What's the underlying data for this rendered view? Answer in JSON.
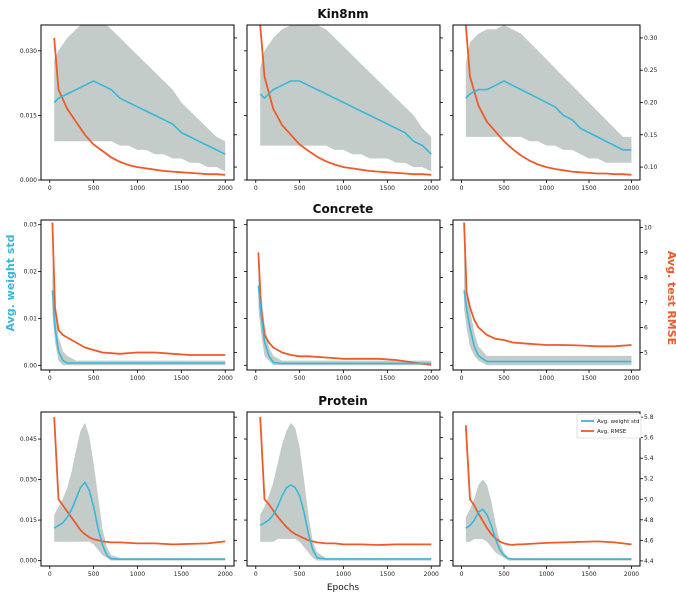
{
  "figure": {
    "row_titles": [
      "Kin8nm",
      "Concrete",
      "Protein"
    ],
    "xlabel": "Epochs",
    "ylabel_left": "Avg. weight std",
    "ylabel_right": "Avg. test RMSE",
    "legend": [
      "Avg. weight std",
      "Avg. RMSE"
    ],
    "colors": {
      "std": "#3ab7d8",
      "rmse": "#ee5a2a",
      "band": "#c4ccca",
      "axis": "#000000"
    }
  },
  "chart_data": [
    {
      "type": "line",
      "dataset": "Kin8nm",
      "xticks": [
        0,
        500,
        1000,
        1500,
        2000
      ],
      "ylim_left": [
        0,
        0.036
      ],
      "yticks_left": [
        "0.000",
        "0.015",
        "0.030"
      ],
      "ylim_right": [
        0.08,
        0.32
      ],
      "yticks_right": [
        "0.10",
        "0.15",
        "0.20",
        "0.25",
        "0.30"
      ],
      "x": [
        50,
        100,
        200,
        300,
        400,
        500,
        600,
        700,
        800,
        900,
        1000,
        1100,
        1200,
        1300,
        1400,
        1500,
        1600,
        1700,
        1800,
        1900,
        2000
      ],
      "panels": [
        {
          "std": [
            0.018,
            0.019,
            0.02,
            0.021,
            0.022,
            0.023,
            0.022,
            0.021,
            0.019,
            0.018,
            0.017,
            0.016,
            0.015,
            0.014,
            0.013,
            0.011,
            0.01,
            0.009,
            0.008,
            0.007,
            0.006
          ],
          "band_lo": [
            0.009,
            0.009,
            0.009,
            0.009,
            0.009,
            0.009,
            0.009,
            0.009,
            0.008,
            0.008,
            0.007,
            0.007,
            0.006,
            0.006,
            0.005,
            0.005,
            0.004,
            0.004,
            0.003,
            0.003,
            0.002
          ],
          "band_hi": [
            0.028,
            0.03,
            0.033,
            0.035,
            0.037,
            0.038,
            0.037,
            0.035,
            0.033,
            0.031,
            0.029,
            0.027,
            0.025,
            0.023,
            0.021,
            0.018,
            0.016,
            0.014,
            0.012,
            0.01,
            0.009
          ],
          "rmse": [
            0.3,
            0.22,
            0.19,
            0.17,
            0.15,
            0.135,
            0.125,
            0.115,
            0.108,
            0.103,
            0.1,
            0.098,
            0.096,
            0.094,
            0.093,
            0.092,
            0.091,
            0.09,
            0.089,
            0.089,
            0.088
          ]
        },
        {
          "std": [
            0.02,
            0.019,
            0.021,
            0.022,
            0.023,
            0.023,
            0.022,
            0.021,
            0.02,
            0.019,
            0.018,
            0.017,
            0.016,
            0.015,
            0.014,
            0.013,
            0.012,
            0.011,
            0.009,
            0.008,
            0.006
          ],
          "band_lo": [
            0.008,
            0.008,
            0.008,
            0.008,
            0.008,
            0.008,
            0.008,
            0.008,
            0.008,
            0.007,
            0.007,
            0.006,
            0.006,
            0.005,
            0.005,
            0.005,
            0.004,
            0.004,
            0.003,
            0.003,
            0.002
          ],
          "band_hi": [
            0.026,
            0.03,
            0.033,
            0.035,
            0.036,
            0.037,
            0.037,
            0.036,
            0.035,
            0.033,
            0.031,
            0.029,
            0.027,
            0.025,
            0.023,
            0.021,
            0.019,
            0.017,
            0.015,
            0.012,
            0.01
          ],
          "rmse": [
            0.32,
            0.24,
            0.19,
            0.165,
            0.15,
            0.135,
            0.125,
            0.116,
            0.109,
            0.104,
            0.1,
            0.098,
            0.096,
            0.094,
            0.093,
            0.092,
            0.091,
            0.09,
            0.089,
            0.089,
            0.088
          ]
        },
        {
          "std": [
            0.019,
            0.02,
            0.021,
            0.021,
            0.022,
            0.023,
            0.022,
            0.021,
            0.02,
            0.019,
            0.018,
            0.017,
            0.015,
            0.014,
            0.012,
            0.011,
            0.01,
            0.009,
            0.008,
            0.007,
            0.007
          ],
          "band_lo": [
            0.01,
            0.01,
            0.01,
            0.01,
            0.01,
            0.01,
            0.01,
            0.01,
            0.009,
            0.009,
            0.008,
            0.008,
            0.007,
            0.007,
            0.006,
            0.005,
            0.005,
            0.004,
            0.004,
            0.004,
            0.004
          ],
          "band_hi": [
            0.027,
            0.032,
            0.034,
            0.035,
            0.035,
            0.036,
            0.035,
            0.034,
            0.032,
            0.03,
            0.028,
            0.026,
            0.024,
            0.022,
            0.02,
            0.018,
            0.016,
            0.014,
            0.012,
            0.01,
            0.01
          ],
          "rmse": [
            0.32,
            0.24,
            0.195,
            0.17,
            0.155,
            0.14,
            0.128,
            0.118,
            0.11,
            0.104,
            0.1,
            0.097,
            0.095,
            0.093,
            0.092,
            0.091,
            0.09,
            0.09,
            0.089,
            0.089,
            0.088
          ]
        }
      ]
    },
    {
      "type": "line",
      "dataset": "Concrete",
      "xticks": [
        0,
        500,
        1000,
        1500,
        2000
      ],
      "ylim_left": [
        -0.001,
        0.031
      ],
      "yticks_left": [
        "0.00",
        "0.01",
        "0.02",
        "0.03"
      ],
      "ylim_right": [
        4.3,
        10.3
      ],
      "yticks_right": [
        "5",
        "6",
        "7",
        "8",
        "9",
        "10"
      ],
      "x": [
        30,
        60,
        100,
        150,
        200,
        300,
        400,
        500,
        600,
        800,
        1000,
        1200,
        1400,
        1600,
        1800,
        2000
      ],
      "panels": [
        {
          "std": [
            0.016,
            0.008,
            0.003,
            0.001,
            0.0005,
            0.0005,
            0.0005,
            0.0005,
            0.0005,
            0.0005,
            0.0005,
            0.0005,
            0.0005,
            0.0005,
            0.0005,
            0.0005
          ],
          "band_lo": [
            0.011,
            0.005,
            0.001,
            0.0,
            0.0,
            0.0,
            0.0,
            0.0,
            0.0,
            0.0,
            0.0,
            0.0,
            0.0,
            0.0,
            0.0,
            0.0
          ],
          "band_hi": [
            0.022,
            0.013,
            0.006,
            0.003,
            0.002,
            0.001,
            0.001,
            0.001,
            0.001,
            0.001,
            0.001,
            0.001,
            0.001,
            0.001,
            0.001,
            0.001
          ],
          "rmse": [
            10.2,
            6.8,
            5.9,
            5.7,
            5.6,
            5.4,
            5.2,
            5.1,
            5.0,
            4.95,
            5.0,
            5.0,
            4.95,
            4.9,
            4.9,
            4.9
          ]
        },
        {
          "std": [
            0.017,
            0.011,
            0.005,
            0.002,
            0.0006,
            0.0004,
            0.0004,
            0.0004,
            0.0004,
            0.0004,
            0.0004,
            0.0004,
            0.0004,
            0.0004,
            0.0004,
            0.0004
          ],
          "band_lo": [
            0.012,
            0.007,
            0.002,
            0.001,
            0.0,
            0.0,
            0.0,
            0.0,
            0.0,
            0.0,
            0.0,
            0.0,
            0.0,
            0.0,
            0.0,
            0.0
          ],
          "band_hi": [
            0.025,
            0.016,
            0.009,
            0.004,
            0.002,
            0.001,
            0.001,
            0.001,
            0.001,
            0.001,
            0.001,
            0.001,
            0.001,
            0.001,
            0.001,
            0.001
          ],
          "rmse": [
            9.0,
            6.8,
            5.7,
            5.4,
            5.2,
            5.0,
            4.9,
            4.85,
            4.85,
            4.8,
            4.75,
            4.75,
            4.75,
            4.7,
            4.6,
            4.5
          ]
        },
        {
          "std": [
            0.016,
            0.012,
            0.008,
            0.004,
            0.002,
            0.0008,
            0.0008,
            0.0008,
            0.0008,
            0.0008,
            0.0008,
            0.0008,
            0.0008,
            0.0008,
            0.0008,
            0.0008
          ],
          "band_lo": [
            0.012,
            0.008,
            0.004,
            0.002,
            0.001,
            0.0,
            0.0,
            0.0,
            0.0,
            0.0,
            0.0,
            0.0,
            0.0,
            0.0,
            0.0,
            0.0
          ],
          "band_hi": [
            0.024,
            0.017,
            0.012,
            0.007,
            0.004,
            0.002,
            0.002,
            0.002,
            0.002,
            0.002,
            0.002,
            0.002,
            0.002,
            0.002,
            0.002,
            0.002
          ],
          "rmse": [
            10.2,
            7.4,
            6.8,
            6.3,
            6.0,
            5.7,
            5.55,
            5.5,
            5.4,
            5.35,
            5.3,
            5.3,
            5.28,
            5.25,
            5.25,
            5.3
          ]
        }
      ]
    },
    {
      "type": "line",
      "dataset": "Protein",
      "xticks": [
        0,
        500,
        1000,
        1500,
        2000
      ],
      "ylim_left": [
        -0.002,
        0.055
      ],
      "yticks_left": [
        "0.000",
        "0.015",
        "0.030",
        "0.045"
      ],
      "ylim_right": [
        4.35,
        5.85
      ],
      "yticks_right": [
        "4.4",
        "4.6",
        "4.8",
        "5.0",
        "5.2",
        "5.4",
        "5.6",
        "5.8"
      ],
      "x": [
        50,
        100,
        150,
        200,
        250,
        300,
        350,
        400,
        450,
        500,
        550,
        600,
        650,
        700,
        800,
        900,
        1000,
        1200,
        1400,
        1600,
        1800,
        2000
      ],
      "panels": [
        {
          "std": [
            0.012,
            0.013,
            0.014,
            0.016,
            0.019,
            0.023,
            0.027,
            0.029,
            0.026,
            0.02,
            0.012,
            0.006,
            0.002,
            0.0007,
            0.0005,
            0.0005,
            0.0005,
            0.0005,
            0.0005,
            0.0005,
            0.0005,
            0.0005
          ],
          "band_lo": [
            0.007,
            0.007,
            0.007,
            0.007,
            0.007,
            0.007,
            0.007,
            0.007,
            0.007,
            0.006,
            0.004,
            0.002,
            0.001,
            0.0,
            0.0,
            0.0,
            0.0,
            0.0,
            0.0,
            0.0,
            0.0,
            0.0
          ],
          "band_hi": [
            0.017,
            0.02,
            0.023,
            0.027,
            0.033,
            0.041,
            0.048,
            0.051,
            0.046,
            0.036,
            0.024,
            0.012,
            0.005,
            0.002,
            0.001,
            0.001,
            0.001,
            0.001,
            0.001,
            0.001,
            0.001,
            0.001
          ],
          "rmse": [
            5.8,
            5.0,
            4.94,
            4.88,
            4.82,
            4.76,
            4.7,
            4.66,
            4.63,
            4.61,
            4.6,
            4.59,
            4.585,
            4.58,
            4.58,
            4.575,
            4.57,
            4.57,
            4.56,
            4.565,
            4.57,
            4.59
          ]
        },
        {
          "std": [
            0.013,
            0.014,
            0.015,
            0.017,
            0.02,
            0.024,
            0.027,
            0.028,
            0.027,
            0.024,
            0.018,
            0.01,
            0.004,
            0.001,
            0.0006,
            0.0006,
            0.0006,
            0.0006,
            0.0006,
            0.0006,
            0.0006,
            0.0006
          ],
          "band_lo": [
            0.007,
            0.007,
            0.007,
            0.007,
            0.008,
            0.008,
            0.008,
            0.008,
            0.008,
            0.007,
            0.005,
            0.003,
            0.001,
            0.0,
            0.0,
            0.0,
            0.0,
            0.0,
            0.0,
            0.0,
            0.0,
            0.0
          ],
          "band_hi": [
            0.017,
            0.02,
            0.024,
            0.029,
            0.036,
            0.043,
            0.048,
            0.051,
            0.049,
            0.042,
            0.03,
            0.017,
            0.007,
            0.003,
            0.001,
            0.001,
            0.001,
            0.001,
            0.001,
            0.001,
            0.001,
            0.001
          ],
          "rmse": [
            5.8,
            5.0,
            4.95,
            4.89,
            4.83,
            4.78,
            4.73,
            4.69,
            4.66,
            4.64,
            4.62,
            4.6,
            4.59,
            4.58,
            4.57,
            4.57,
            4.56,
            4.56,
            4.555,
            4.56,
            4.56,
            4.56
          ]
        },
        {
          "std": [
            0.012,
            0.013,
            0.015,
            0.018,
            0.019,
            0.017,
            0.013,
            0.008,
            0.004,
            0.002,
            0.0008,
            0.0005,
            0.0005,
            0.0005,
            0.0005,
            0.0005,
            0.0005,
            0.0005,
            0.0005,
            0.0005,
            0.0005,
            0.0005
          ],
          "band_lo": [
            0.007,
            0.007,
            0.008,
            0.008,
            0.008,
            0.007,
            0.005,
            0.003,
            0.002,
            0.001,
            0.0,
            0.0,
            0.0,
            0.0,
            0.0,
            0.0,
            0.0,
            0.0,
            0.0,
            0.0,
            0.0,
            0.0
          ],
          "band_hi": [
            0.016,
            0.019,
            0.023,
            0.028,
            0.03,
            0.028,
            0.022,
            0.014,
            0.007,
            0.003,
            0.001,
            0.001,
            0.001,
            0.001,
            0.001,
            0.001,
            0.001,
            0.001,
            0.001,
            0.001,
            0.001,
            0.001
          ],
          "rmse": [
            5.72,
            5.0,
            4.94,
            4.86,
            4.79,
            4.72,
            4.66,
            4.62,
            4.59,
            4.57,
            4.56,
            4.555,
            4.56,
            4.56,
            4.565,
            4.57,
            4.575,
            4.58,
            4.585,
            4.59,
            4.58,
            4.56
          ]
        }
      ]
    }
  ]
}
